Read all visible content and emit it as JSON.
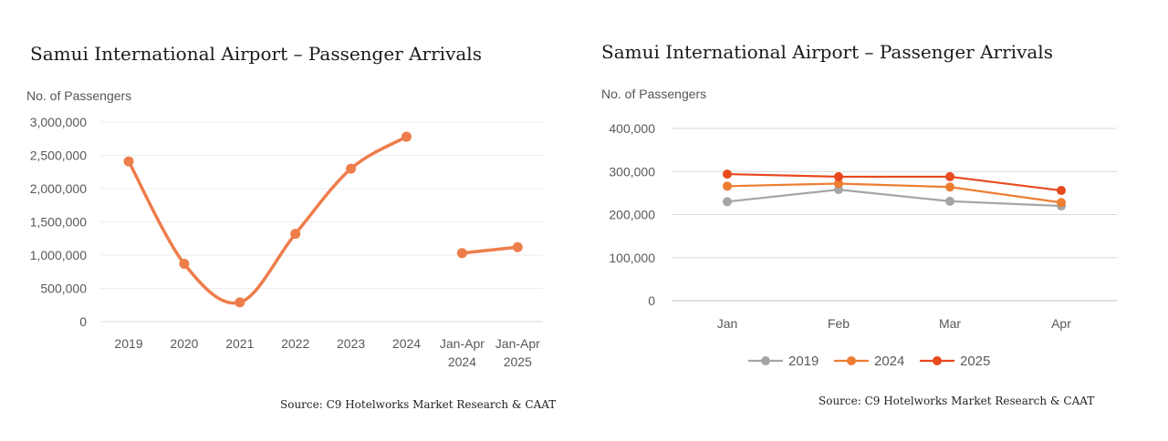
{
  "chart_data": [
    {
      "type": "line",
      "title": "Samui International Airport – Passenger Arrivals",
      "ylabel": "No. of Passengers",
      "xlabel": "",
      "source": "Source: C9 Hotelworks Market Research & CAAT",
      "categories": [
        [
          "2019"
        ],
        [
          "2020"
        ],
        [
          "2021"
        ],
        [
          "2022"
        ],
        [
          "2023"
        ],
        [
          "2024"
        ],
        [
          "Jan-Apr",
          "2024"
        ],
        [
          "Jan-Apr",
          "2025"
        ]
      ],
      "y_ticks": [
        "3,000,000",
        "2,500,000",
        "2,000,000",
        "1,500,000",
        "1,000,000",
        "500,000",
        "0"
      ],
      "ylim": [
        0,
        3000000
      ],
      "grid": true,
      "series": [
        {
          "color": "#ED7D4B",
          "smooth": true,
          "segments": [
            [
              0,
              5
            ],
            [
              6,
              7
            ]
          ],
          "values": [
            2410000,
            870000,
            290000,
            1320000,
            2300000,
            2780000,
            1030000,
            1120000
          ]
        }
      ]
    },
    {
      "type": "line",
      "title": "Samui International Airport – Passenger Arrivals",
      "ylabel": "No. of Passengers",
      "xlabel": "",
      "source": "Source: C9 Hotelworks Market Research & CAAT",
      "categories": [
        "Jan",
        "Feb",
        "Mar",
        "Apr"
      ],
      "y_ticks": [
        "400,000",
        "300,000",
        "200,000",
        "100,000",
        "0"
      ],
      "ylim": [
        0,
        400000
      ],
      "grid": true,
      "legend_position": "bottom",
      "series": [
        {
          "name": "2019",
          "color": "#A5A5A5",
          "values": [
            230000,
            258000,
            231000,
            220000
          ]
        },
        {
          "name": "2024",
          "color": "#ED7D31",
          "values": [
            266000,
            272000,
            264000,
            228000
          ]
        },
        {
          "name": "2025",
          "color": "#E8491D",
          "values": [
            294000,
            288000,
            288000,
            256000
          ]
        }
      ]
    }
  ]
}
